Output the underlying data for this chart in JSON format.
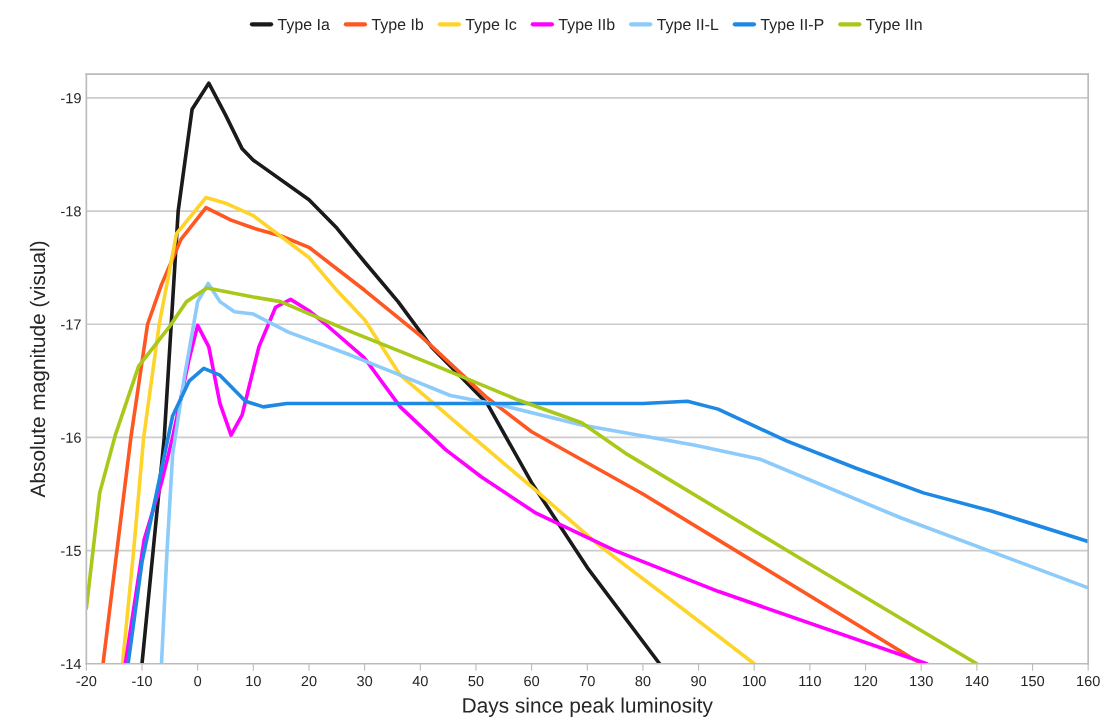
{
  "chart_data": {
    "type": "line",
    "xlabel": "Days since peak luminosity",
    "ylabel": "Absolute magnitude (visual)",
    "xlim": [
      -20,
      160
    ],
    "ylim": [
      -14,
      -19.21
    ],
    "xticks": [
      -20,
      -10,
      0,
      10,
      20,
      30,
      40,
      50,
      60,
      70,
      80,
      90,
      100,
      110,
      120,
      130,
      140,
      150,
      160
    ],
    "yticks": [
      -19,
      -18,
      -17,
      -16,
      -15,
      -14
    ],
    "grid": "y",
    "legend": "top",
    "marker": "none",
    "line_style": "solid",
    "series": [
      {
        "name": "Type Ia",
        "color": "#1a1a1a",
        "x": [
          -10,
          -8,
          -6,
          -3.5,
          -1,
          2,
          5,
          8,
          10,
          20,
          25,
          30,
          36,
          42,
          48,
          52,
          60,
          70,
          83
        ],
        "values": [
          -14,
          -15,
          -16,
          -18,
          -18.9,
          -19.13,
          -18.85,
          -18.55,
          -18.45,
          -18.1,
          -17.85,
          -17.55,
          -17.2,
          -16.8,
          -16.5,
          -16.3,
          -15.6,
          -14.85,
          -14
        ]
      },
      {
        "name": "Type Ib",
        "color": "#ff5722",
        "x": [
          -17,
          -14.5,
          -12,
          -9,
          -6.5,
          -3,
          1.5,
          6,
          10,
          15,
          20,
          30,
          40,
          52,
          60,
          80,
          100,
          130
        ],
        "values": [
          -14,
          -15,
          -16,
          -17,
          -17.35,
          -17.75,
          -18.03,
          -17.92,
          -17.85,
          -17.78,
          -17.68,
          -17.3,
          -16.9,
          -16.35,
          -16.05,
          -15.5,
          -14.9,
          -14
        ]
      },
      {
        "name": "Type Ic",
        "color": "#ffd42a",
        "x": [
          -13.5,
          -11.5,
          -9.7,
          -6.9,
          -3.8,
          1.5,
          5,
          10,
          20,
          25,
          30,
          36.4,
          43.9,
          50,
          60.8,
          72,
          87,
          100
        ],
        "values": [
          -14,
          -15,
          -16,
          -17,
          -17.8,
          -18.12,
          -18.07,
          -17.96,
          -17.59,
          -17.3,
          -17.04,
          -16.55,
          -16.24,
          -15.98,
          -15.53,
          -15.05,
          -14.49,
          -14
        ]
      },
      {
        "name": "Type IIb",
        "color": "#ff00ff",
        "x": [
          -13,
          -9.6,
          -6.5,
          -4.5,
          -1.5,
          0,
          2,
          4,
          6,
          8,
          11,
          14,
          16.7,
          20,
          23,
          30,
          36.4,
          44.6,
          51,
          60.8,
          75,
          93.5,
          131
        ],
        "values": [
          -14,
          -15.1,
          -15.6,
          -16,
          -16.7,
          -16.99,
          -16.8,
          -16.3,
          -16.02,
          -16.2,
          -16.8,
          -17.15,
          -17.22,
          -17.12,
          -17,
          -16.7,
          -16.27,
          -15.89,
          -15.65,
          -15.33,
          -15,
          -14.64,
          -14
        ]
      },
      {
        "name": "Type II-L",
        "color": "#8ccbfa",
        "x": [
          -6.5,
          -5.5,
          -4.5,
          -2.4,
          0,
          1.9,
          4,
          6.6,
          10,
          16.3,
          27.3,
          36.4,
          45.4,
          55,
          69,
          89.4,
          100.9,
          126.3,
          160
        ],
        "values": [
          -14,
          -15,
          -15.85,
          -16.53,
          -17.2,
          -17.36,
          -17.2,
          -17.11,
          -17.09,
          -16.93,
          -16.73,
          -16.55,
          -16.37,
          -16.28,
          -16.11,
          -15.93,
          -15.81,
          -15.29,
          -14.67
        ]
      },
      {
        "name": "Type II-P",
        "color": "#1e88e5",
        "x": [
          -12.5,
          -10,
          -7,
          -4.5,
          -1.5,
          1.1,
          4,
          8.6,
          11.8,
          16,
          30,
          60,
          80,
          88,
          93.5,
          105.8,
          118.2,
          130.4,
          142.6,
          160
        ],
        "values": [
          -14,
          -14.9,
          -15.6,
          -16.19,
          -16.5,
          -16.61,
          -16.55,
          -16.32,
          -16.27,
          -16.3,
          -16.3,
          -16.3,
          -16.3,
          -16.32,
          -16.25,
          -15.97,
          -15.73,
          -15.51,
          -15.35,
          -15.08
        ]
      },
      {
        "name": "Type IIn",
        "color": "#a8c81a",
        "x": [
          -20,
          -17.6,
          -14.8,
          -10.6,
          -5.2,
          -2,
          1.7,
          10,
          14.9,
          27.3,
          36.4,
          43.9,
          57.6,
          69,
          77.2,
          108.3,
          140
        ],
        "values": [
          -14.49,
          -15.51,
          -16.02,
          -16.63,
          -16.97,
          -17.2,
          -17.32,
          -17.24,
          -17.2,
          -16.94,
          -16.76,
          -16.61,
          -16.33,
          -16.13,
          -15.85,
          -14.93,
          -14
        ]
      }
    ]
  }
}
